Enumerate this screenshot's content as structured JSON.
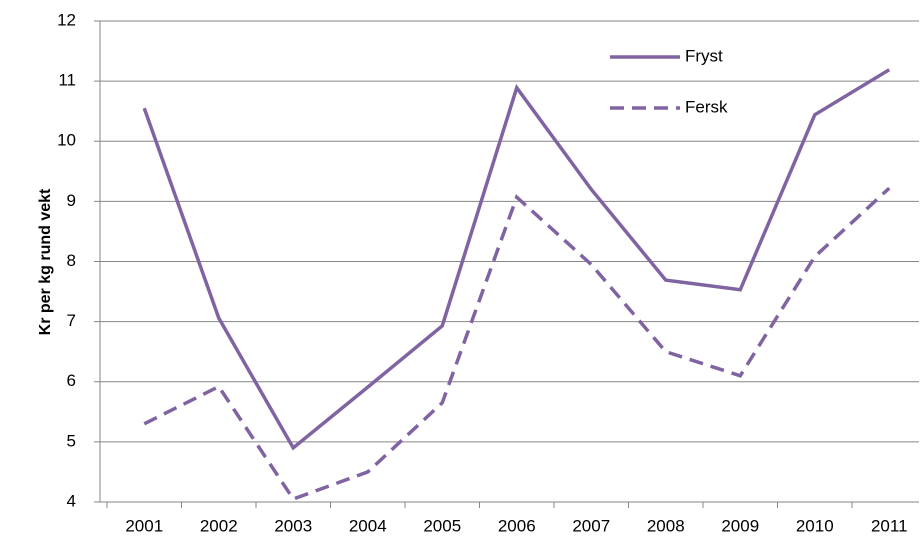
{
  "chart_data": {
    "type": "line",
    "y_label": "Kr per kg rund vekt",
    "categories": [
      "2001",
      "2002",
      "2003",
      "2004",
      "2005",
      "2006",
      "2007",
      "2008",
      "2009",
      "2010",
      "2011"
    ],
    "series": [
      {
        "name": "Fryst",
        "color": "#8064a2",
        "dash": false,
        "values": [
          10.55,
          7.06,
          4.9,
          5.91,
          6.93,
          10.89,
          9.2,
          7.69,
          7.53,
          10.44,
          11.19
        ]
      },
      {
        "name": "Fersk",
        "color": "#8064a2",
        "dash": true,
        "values": [
          5.3,
          5.92,
          4.05,
          4.5,
          5.65,
          9.07,
          7.95,
          6.5,
          6.1,
          8.08,
          9.22
        ]
      }
    ],
    "ylim": [
      4,
      12
    ],
    "yticks": [
      4,
      5,
      6,
      7,
      8,
      9,
      10,
      11,
      12
    ],
    "grid": true
  }
}
